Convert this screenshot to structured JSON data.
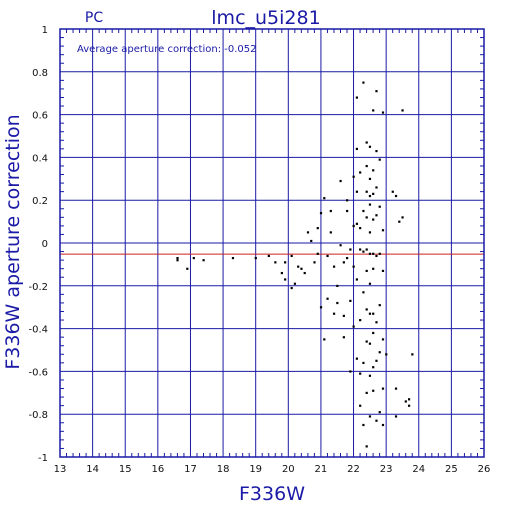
{
  "chart_data": {
    "type": "scatter",
    "corner_label": "PC",
    "title": "lmc_u5i281",
    "annotation": "Average aperture correction: -0.052",
    "xlabel": "F336W",
    "ylabel": "F336W aperture correction",
    "xlim": [
      13,
      26
    ],
    "ylim": [
      -1,
      1
    ],
    "x_ticks": [
      "13",
      "14",
      "15",
      "16",
      "17",
      "18",
      "19",
      "20",
      "21",
      "22",
      "23",
      "24",
      "25",
      "26"
    ],
    "y_ticks": [
      "1",
      "0.8",
      "0.6",
      "0.4",
      "0.2",
      "0",
      "-0.2",
      "-0.4",
      "-0.6",
      "-0.8",
      "-1"
    ],
    "grid": true,
    "mean_line": -0.052,
    "colors": {
      "axes": "#1a1aa6",
      "grid": "#1a1aa6",
      "mean_line": "#cc2222",
      "points": "#000000"
    },
    "points": [
      [
        16.6,
        -0.07
      ],
      [
        16.6,
        -0.08
      ],
      [
        16.9,
        -0.12
      ],
      [
        17.1,
        -0.07
      ],
      [
        17.4,
        -0.08
      ],
      [
        18.3,
        -0.07
      ],
      [
        19.0,
        -0.07
      ],
      [
        19.4,
        -0.06
      ],
      [
        19.6,
        -0.09
      ],
      [
        19.8,
        -0.14
      ],
      [
        19.9,
        -0.17
      ],
      [
        19.9,
        -0.09
      ],
      [
        20.1,
        -0.06
      ],
      [
        20.1,
        -0.21
      ],
      [
        20.2,
        -0.19
      ],
      [
        20.3,
        -0.11
      ],
      [
        20.4,
        -0.12
      ],
      [
        20.5,
        -0.14
      ],
      [
        20.6,
        0.05
      ],
      [
        20.7,
        0.01
      ],
      [
        20.8,
        -0.09
      ],
      [
        20.9,
        -0.05
      ],
      [
        20.9,
        0.07
      ],
      [
        21.0,
        -0.3
      ],
      [
        21.0,
        0.14
      ],
      [
        21.1,
        -0.45
      ],
      [
        21.1,
        0.21
      ],
      [
        21.2,
        -0.06
      ],
      [
        21.2,
        -0.26
      ],
      [
        21.3,
        0.05
      ],
      [
        21.3,
        0.15
      ],
      [
        21.4,
        -0.33
      ],
      [
        21.4,
        -0.11
      ],
      [
        21.5,
        -0.2
      ],
      [
        21.5,
        -0.28
      ],
      [
        21.6,
        0.29
      ],
      [
        21.6,
        -0.01
      ],
      [
        21.7,
        -0.34
      ],
      [
        21.7,
        -0.09
      ],
      [
        21.7,
        -0.44
      ],
      [
        21.8,
        0.15
      ],
      [
        21.8,
        0.2
      ],
      [
        21.8,
        -0.07
      ],
      [
        21.9,
        -0.6
      ],
      [
        21.9,
        -0.27
      ],
      [
        21.9,
        -0.03
      ],
      [
        22.0,
        0.31
      ],
      [
        22.0,
        0.08
      ],
      [
        22.0,
        -0.11
      ],
      [
        22.0,
        -0.39
      ],
      [
        22.1,
        0.68
      ],
      [
        22.1,
        0.44
      ],
      [
        22.1,
        0.24
      ],
      [
        22.1,
        0.09
      ],
      [
        22.1,
        -0.17
      ],
      [
        22.1,
        -0.54
      ],
      [
        22.2,
        0.33
      ],
      [
        22.2,
        0.07
      ],
      [
        22.2,
        -0.03
      ],
      [
        22.2,
        -0.36
      ],
      [
        22.2,
        -0.61
      ],
      [
        22.2,
        -0.76
      ],
      [
        22.3,
        0.75
      ],
      [
        22.3,
        0.15
      ],
      [
        22.3,
        -0.04
      ],
      [
        22.3,
        -0.23
      ],
      [
        22.3,
        -0.56
      ],
      [
        22.3,
        -0.85
      ],
      [
        22.4,
        0.47
      ],
      [
        22.4,
        0.36
      ],
      [
        22.4,
        0.24
      ],
      [
        22.4,
        0.12
      ],
      [
        22.4,
        -0.03
      ],
      [
        22.4,
        -0.13
      ],
      [
        22.4,
        -0.31
      ],
      [
        22.4,
        -0.46
      ],
      [
        22.4,
        -0.7
      ],
      [
        22.4,
        -0.95
      ],
      [
        22.5,
        0.45
      ],
      [
        22.5,
        0.3
      ],
      [
        22.5,
        0.22
      ],
      [
        22.5,
        0.18
      ],
      [
        22.5,
        0.05
      ],
      [
        22.5,
        -0.05
      ],
      [
        22.5,
        -0.19
      ],
      [
        22.5,
        -0.33
      ],
      [
        22.5,
        -0.47
      ],
      [
        22.5,
        -0.62
      ],
      [
        22.5,
        -0.81
      ],
      [
        22.6,
        0.62
      ],
      [
        22.6,
        0.34
      ],
      [
        22.6,
        0.23
      ],
      [
        22.6,
        0.11
      ],
      [
        22.6,
        -0.05
      ],
      [
        22.6,
        -0.12
      ],
      [
        22.6,
        -0.33
      ],
      [
        22.6,
        -0.42
      ],
      [
        22.6,
        -0.58
      ],
      [
        22.6,
        -0.69
      ],
      [
        22.7,
        0.71
      ],
      [
        22.7,
        0.43
      ],
      [
        22.7,
        0.26
      ],
      [
        22.7,
        0.13
      ],
      [
        22.7,
        -0.06
      ],
      [
        22.7,
        -0.37
      ],
      [
        22.7,
        -0.55
      ],
      [
        22.7,
        -0.83
      ],
      [
        22.8,
        0.39
      ],
      [
        22.8,
        0.17
      ],
      [
        22.8,
        -0.05
      ],
      [
        22.8,
        -0.29
      ],
      [
        22.8,
        -0.51
      ],
      [
        22.8,
        -0.79
      ],
      [
        22.9,
        0.61
      ],
      [
        22.9,
        0.06
      ],
      [
        22.9,
        -0.13
      ],
      [
        22.9,
        -0.45
      ],
      [
        22.9,
        -0.68
      ],
      [
        22.9,
        -0.85
      ],
      [
        23.0,
        -0.52
      ],
      [
        23.2,
        0.24
      ],
      [
        23.3,
        0.22
      ],
      [
        23.3,
        -0.68
      ],
      [
        23.3,
        -0.81
      ],
      [
        23.4,
        0.1
      ],
      [
        23.5,
        0.62
      ],
      [
        23.5,
        0.12
      ],
      [
        23.6,
        -0.74
      ],
      [
        23.7,
        -0.76
      ],
      [
        23.7,
        -0.73
      ],
      [
        23.8,
        -0.52
      ]
    ]
  }
}
